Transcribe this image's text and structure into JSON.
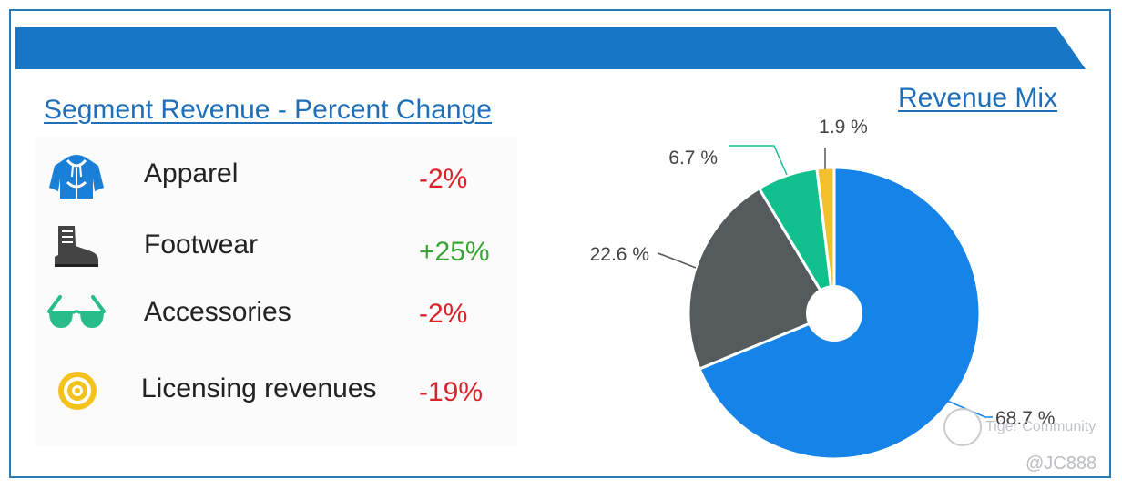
{
  "banner": {
    "color": "#1777c4"
  },
  "segment_section": {
    "title": "Segment Revenue - Percent Change",
    "rows": [
      {
        "label": "Apparel",
        "change": "-2%",
        "trend": "negative",
        "icon": "hoodie-icon",
        "icon_color": "#1a7fd6"
      },
      {
        "label": "Footwear",
        "change": "+25%",
        "trend": "positive",
        "icon": "boot-icon",
        "icon_color": "#444444"
      },
      {
        "label": "Accessories",
        "change": "-2%",
        "trend": "negative",
        "icon": "sunglasses-icon",
        "icon_color": "#27bc8a"
      },
      {
        "label": "Licensing revenues",
        "change": "-19%",
        "trend": "negative",
        "icon": "target-icon",
        "icon_color": "#f3c21b"
      }
    ]
  },
  "mix_section": {
    "title": "Revenue Mix"
  },
  "chart_data": {
    "type": "pie",
    "title": "Revenue Mix",
    "donut_hole": true,
    "start": "12 o'clock, clockwise",
    "slices": [
      {
        "value": 68.7,
        "label": "68.7 %",
        "color": "#1583e8"
      },
      {
        "value": 22.6,
        "label": "22.6 %",
        "color": "#555a5b"
      },
      {
        "value": 6.7,
        "label": "6.7 %",
        "color": "#12c08e"
      },
      {
        "value": 1.9,
        "label": "1.9 %",
        "color": "#f2c02b"
      }
    ]
  },
  "watermark": {
    "brand": "Tiger Community",
    "handle": "@JC888"
  }
}
